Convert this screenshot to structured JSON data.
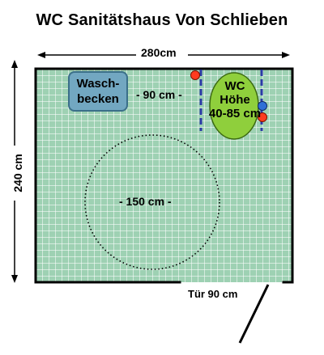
{
  "title": "WC Sanitätshaus Von Schlieben",
  "dimensions": {
    "width": "280cm",
    "height": "240 cm",
    "basin_to_wc": "- 90 cm -",
    "turning_circle": "- 150 cm -",
    "door": "Tür 90 cm"
  },
  "fixtures": {
    "basin_line1": "Wasch-",
    "basin_line2": "becken",
    "wc_line1": "WC",
    "wc_line2": "Höhe",
    "wc_line3": "40-85 cm"
  },
  "colors": {
    "floor": "#9ed1b3",
    "basin": "#72a7c1",
    "wc": "#8fcf3c",
    "rail": "#2b3aa6",
    "red_marker": "#ff3b1f",
    "blue_marker": "#2f6fd6",
    "wall": "#000000"
  }
}
